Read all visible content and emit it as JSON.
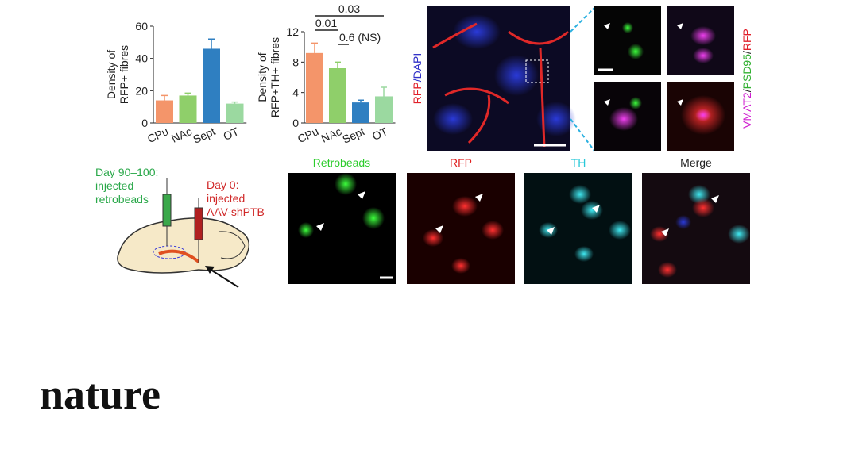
{
  "chart_data": [
    {
      "type": "bar",
      "y_label": [
        "Density of",
        "RFP+ fibres"
      ],
      "categories": [
        "CPu",
        "NAc",
        "Sept",
        "OT"
      ],
      "values": [
        14,
        17,
        46,
        12
      ],
      "errors": [
        3,
        1.5,
        6,
        1
      ],
      "colors": [
        "#f4956a",
        "#8fcf6a",
        "#2f7fc1",
        "#9bd9a0"
      ],
      "ylim": [
        0,
        60
      ],
      "yticks": [
        0,
        20,
        40,
        60
      ]
    },
    {
      "type": "bar",
      "y_label": [
        "Density of",
        "RFP+TH+ fibres"
      ],
      "categories": [
        "CPu",
        "NAc",
        "Sept",
        "OT"
      ],
      "values": [
        9.2,
        7.2,
        2.7,
        3.5
      ],
      "errors": [
        1.3,
        0.8,
        0.3,
        1.2
      ],
      "colors": [
        "#f4956a",
        "#8fcf6a",
        "#2f7fc1",
        "#9bd9a0"
      ],
      "ylim": [
        0,
        12
      ],
      "yticks": [
        0,
        4,
        8,
        12
      ],
      "annotations": [
        "0.03",
        "0.01",
        "0.6 (NS)"
      ]
    }
  ],
  "figure": {
    "rfp_dapi": [
      "RFP",
      "/",
      "DAPI"
    ],
    "vmat_label": [
      "VMAT2",
      "/",
      "PSD95",
      "/",
      "RFP"
    ],
    "injection_1": [
      "Day 90–100:",
      "injected",
      "retrobeads"
    ],
    "injection_2": [
      "Day 0:",
      "injected",
      "AAV-shPTB"
    ],
    "panels": [
      "Retrobeads",
      "RFP",
      "TH",
      "Merge"
    ],
    "logo": "nature"
  }
}
